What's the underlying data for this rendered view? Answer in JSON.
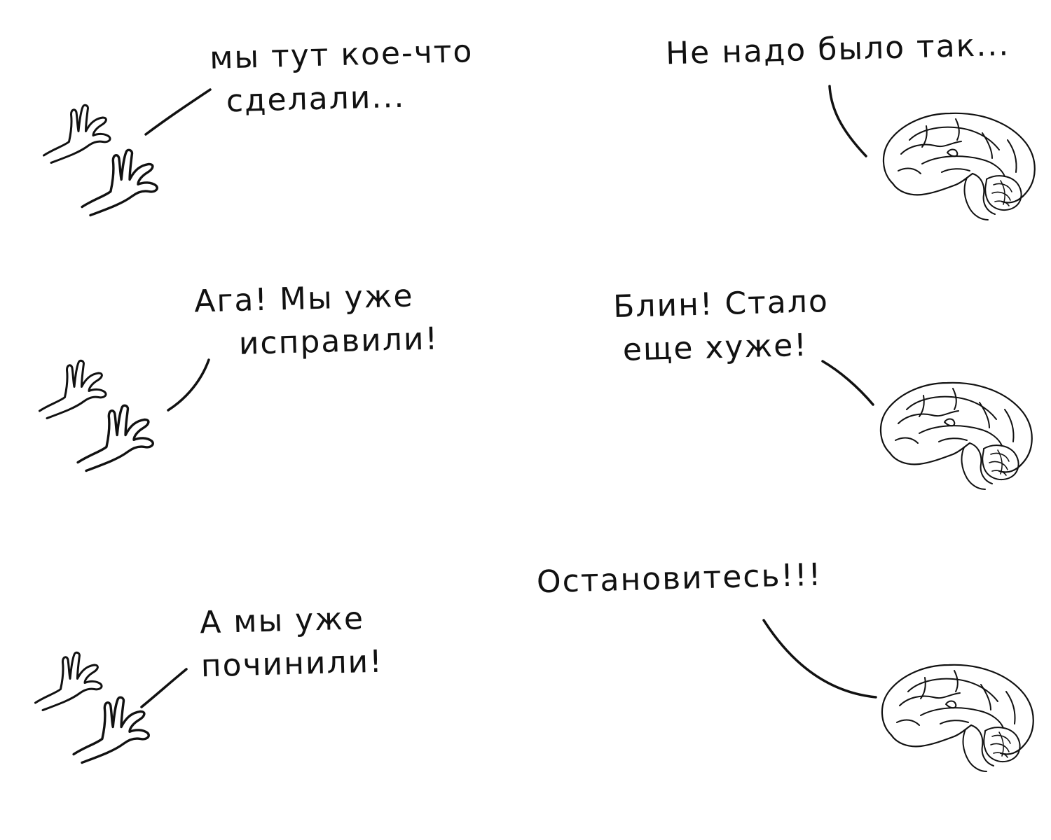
{
  "panels": [
    {
      "hands_text": [
        "мы тут кое-что",
        "сделали..."
      ],
      "brain_text": [
        "Не надо было так..."
      ]
    },
    {
      "hands_text": [
        "Ага! Мы уже",
        "исправили!"
      ],
      "brain_text": [
        "Блин! Стало",
        "еще хуже!"
      ]
    },
    {
      "hands_text": [
        "А мы уже",
        "починили!"
      ],
      "brain_text": [
        "Остановитесь!!!"
      ]
    }
  ]
}
